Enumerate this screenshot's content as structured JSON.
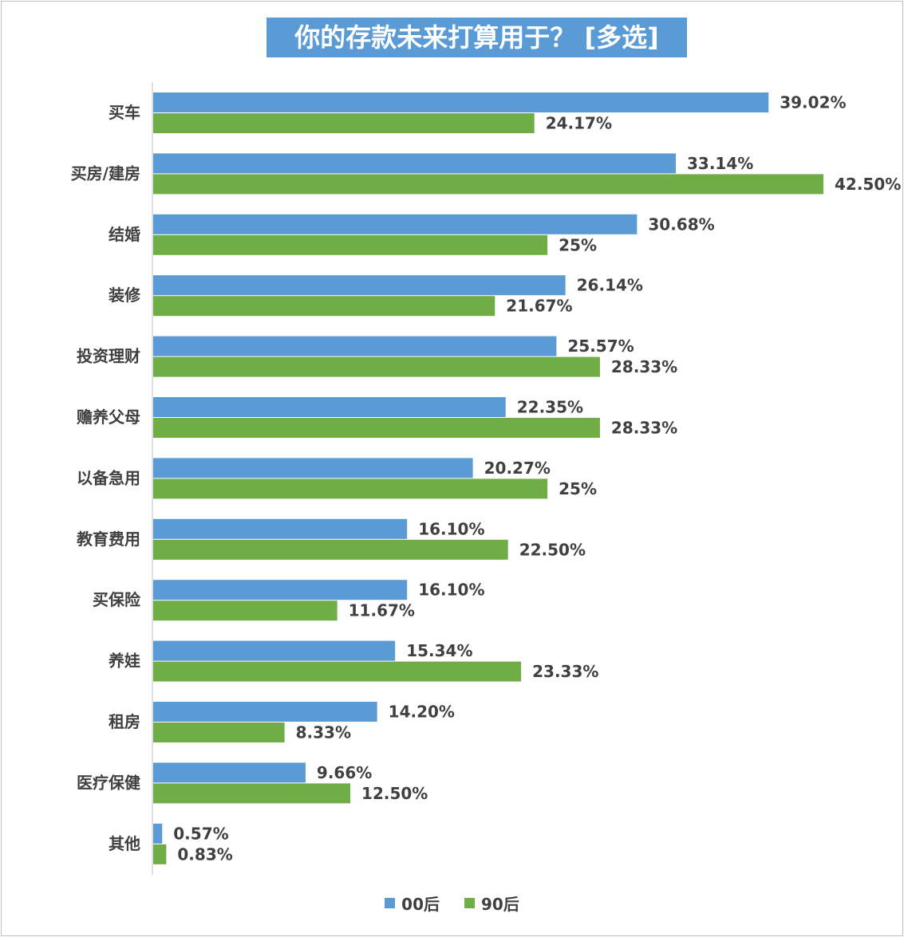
{
  "chart_data": {
    "type": "bar",
    "orientation": "horizontal",
    "title": "你的存款未来打算用于？ [多选]",
    "categories": [
      "买车",
      "买房/建房",
      "结婚",
      "装修",
      "投资理财",
      "赡养父母",
      "以备急用",
      "教育费用",
      "买保险",
      "养娃",
      "租房",
      "医疗保健",
      "其他"
    ],
    "series": [
      {
        "name": "00后",
        "color": "#5B9BD5",
        "values": [
          39.02,
          33.14,
          30.68,
          26.14,
          25.57,
          22.35,
          20.27,
          16.1,
          16.1,
          15.34,
          14.2,
          9.66,
          0.57
        ],
        "labels": [
          "39.02%",
          "33.14%",
          "30.68%",
          "26.14%",
          "25.57%",
          "22.35%",
          "20.27%",
          "16.10%",
          "16.10%",
          "15.34%",
          "14.20%",
          "9.66%",
          "0.57%"
        ]
      },
      {
        "name": "90后",
        "color": "#70AD47",
        "values": [
          24.17,
          42.5,
          25,
          21.67,
          28.33,
          28.33,
          25,
          22.5,
          11.67,
          23.33,
          8.33,
          12.5,
          0.83
        ],
        "labels": [
          "24.17%",
          "42.50%",
          "25%",
          "21.67%",
          "28.33%",
          "28.33%",
          "25%",
          "22.50%",
          "11.67%",
          "23.33%",
          "8.33%",
          "12.50%",
          "0.83%"
        ]
      }
    ],
    "xlim": [
      0,
      42.5
    ],
    "grid": false,
    "legend": "bottom"
  }
}
